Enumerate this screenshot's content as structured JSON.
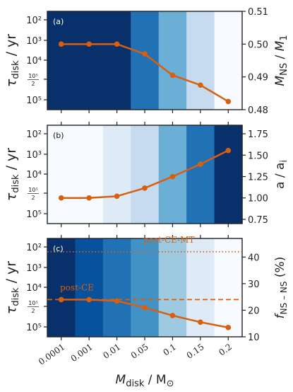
{
  "chart_data": [
    {
      "type": "line",
      "panel_label": "(a)",
      "categories": [
        "0.0001",
        "0.001",
        "0.01",
        "0.05",
        "0.1",
        "0.15",
        "0.2"
      ],
      "background_blues": [
        "#08306b",
        "#08306b",
        "#08306b",
        "#2171b5",
        "#6baed6",
        "#c6dbef",
        "#f7fbff"
      ],
      "ylabel_left": "τdisk / yr",
      "yticks_left": [
        "10²",
        "10³",
        "10⁴",
        "10⁵/2",
        "10⁵"
      ],
      "ylabel_right": "MNS / M1",
      "ylim_right": [
        0.48,
        0.51
      ],
      "yticks_right": [
        "0.48",
        "0.49",
        "0.50",
        "0.51"
      ],
      "series": [
        {
          "color": "#d95f0e",
          "values": [
            0.5,
            0.5,
            0.5,
            0.497,
            0.4905,
            0.4875,
            0.4825
          ]
        }
      ]
    },
    {
      "type": "line",
      "panel_label": "(b)",
      "categories": [
        "0.0001",
        "0.001",
        "0.01",
        "0.05",
        "0.1",
        "0.15",
        "0.2"
      ],
      "background_blues": [
        "#f7fbff",
        "#f7fbff",
        "#deebf7",
        "#c6dbef",
        "#6baed6",
        "#2171b5",
        "#08306b"
      ],
      "ylabel_left": "τdisk / yr",
      "yticks_left": [
        "10²",
        "10³",
        "10⁴",
        "10⁵/2",
        "10⁵"
      ],
      "ylabel_right": "a / ai",
      "ylim_right": [
        0.7,
        1.85
      ],
      "yticks_right": [
        "0.75",
        "1.00",
        "1.25",
        "1.50",
        "1.75"
      ],
      "series": [
        {
          "color": "#d95f0e",
          "values": [
            1.0,
            1.0,
            1.02,
            1.115,
            1.25,
            1.395,
            1.555
          ]
        }
      ]
    },
    {
      "type": "line",
      "panel_label": "(c)",
      "categories": [
        "0.0001",
        "0.001",
        "0.01",
        "0.05",
        "0.1",
        "0.15",
        "0.2"
      ],
      "background_blues": [
        "#08306b",
        "#08519c",
        "#2171b5",
        "#4292c6",
        "#9ecae1",
        "#deebf7",
        "#f7fbff"
      ],
      "ylabel_left": "τdisk / yr",
      "yticks_left": [
        "10²",
        "10³",
        "10⁴",
        "10⁵/2",
        "10⁵"
      ],
      "ylabel_right": "fNS−NS (%)",
      "ylim_right": [
        10,
        47
      ],
      "yticks_right": [
        "10",
        "20",
        "30",
        "40"
      ],
      "series": [
        {
          "color": "#d95f0e",
          "values": [
            24,
            24,
            23.5,
            21,
            18,
            15.5,
            13.5
          ]
        }
      ],
      "reference_lines": [
        {
          "label": "post-CE",
          "value": 24,
          "style": "dashed"
        },
        {
          "label": "post-CE-MT",
          "value": 42,
          "style": "dotted"
        }
      ],
      "xlabel": "Mdisk / M⊙"
    }
  ]
}
